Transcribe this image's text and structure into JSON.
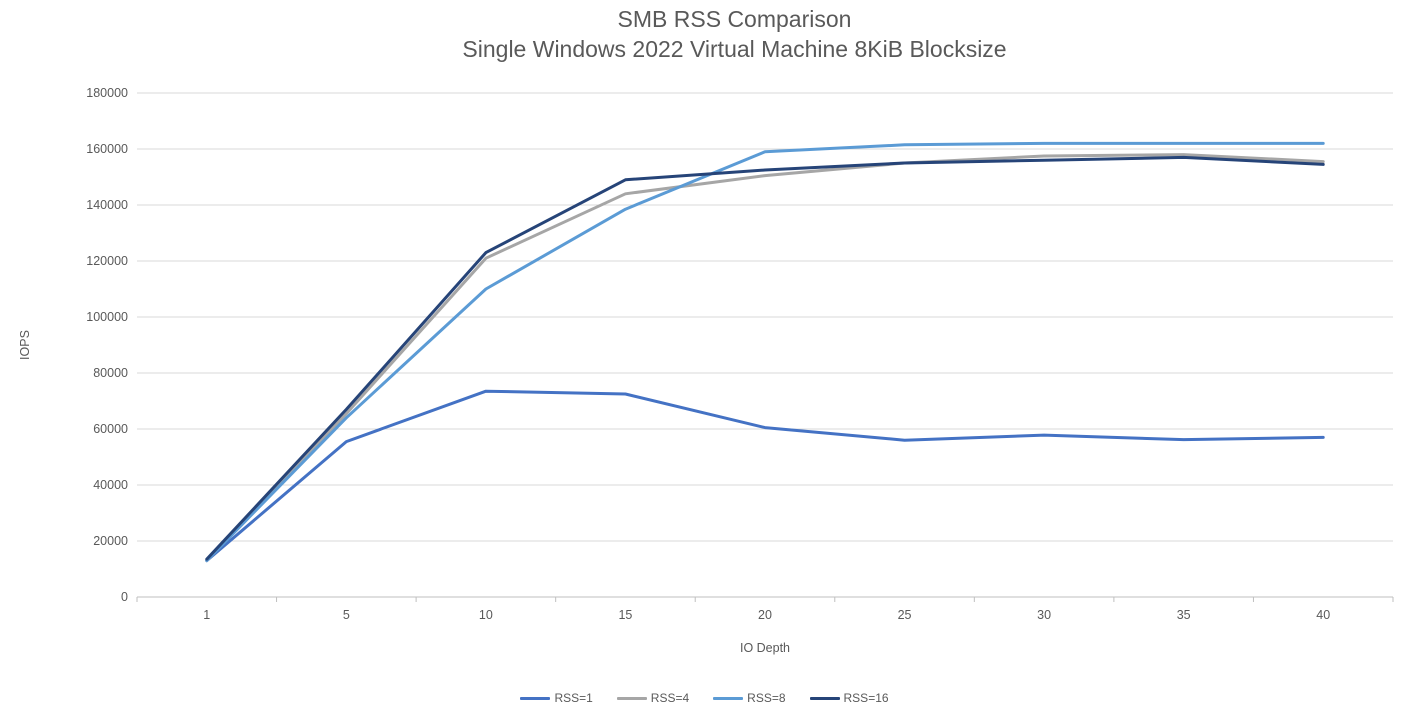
{
  "chart_data": {
    "type": "line",
    "title": "SMB RSS Comparison",
    "subtitle": "Single Windows 2022 Virtual Machine 8KiB Blocksize",
    "xlabel": "IO Depth",
    "ylabel": "IOPS",
    "categories": [
      "1",
      "5",
      "10",
      "15",
      "20",
      "25",
      "30",
      "35",
      "40"
    ],
    "ylim": [
      0,
      180000
    ],
    "yticks": [
      0,
      20000,
      40000,
      60000,
      80000,
      100000,
      120000,
      140000,
      160000,
      180000
    ],
    "grid": true,
    "legend_position": "bottom",
    "series": [
      {
        "name": "RSS=1",
        "color": "#4472C4",
        "values": [
          13000,
          55500,
          73500,
          72500,
          60500,
          56000,
          57800,
          56200,
          57000
        ]
      },
      {
        "name": "RSS=4",
        "color": "#A6A6A6",
        "values": [
          13000,
          65500,
          121000,
          144000,
          150500,
          155000,
          157500,
          158000,
          155500
        ]
      },
      {
        "name": "RSS=8",
        "color": "#5B9BD5",
        "values": [
          13000,
          64000,
          110000,
          138500,
          159000,
          161500,
          162000,
          162000,
          162000
        ]
      },
      {
        "name": "RSS=16",
        "color": "#264478",
        "values": [
          13500,
          67000,
          123000,
          149000,
          152500,
          155000,
          156000,
          157000,
          154500
        ]
      }
    ],
    "style": {
      "text_color": "#595959",
      "gridline_color": "#D9D9D9",
      "axis_color": "#BFBFBF",
      "background": "#FFFFFF",
      "line_width": 3
    }
  }
}
